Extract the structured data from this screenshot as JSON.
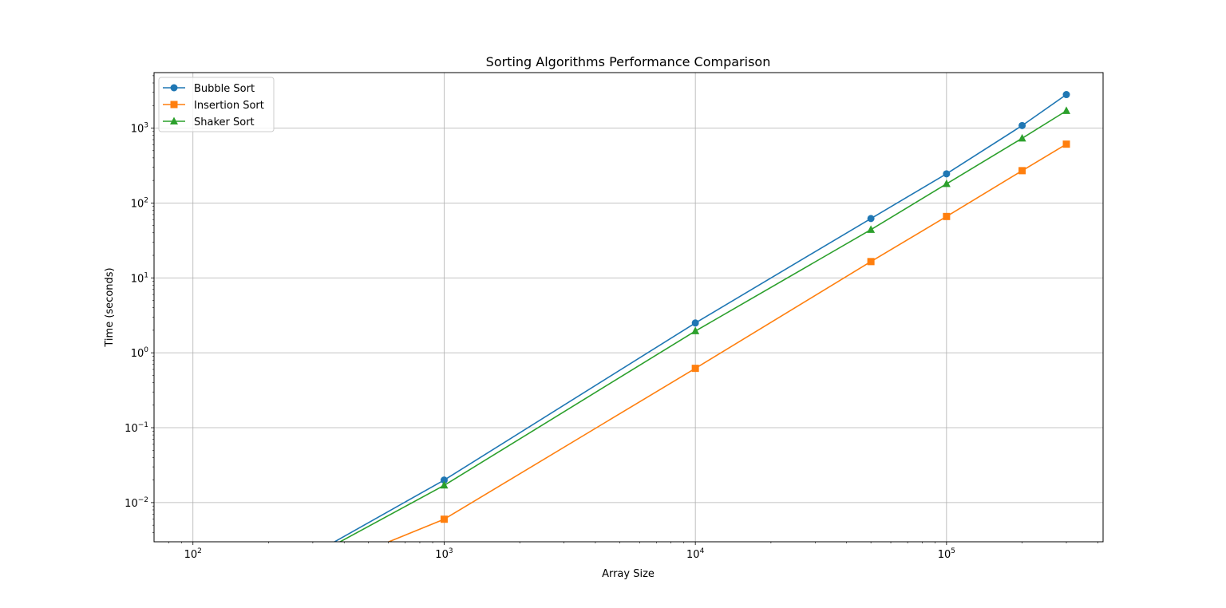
{
  "chart_data": {
    "type": "line",
    "title": "Sorting Algorithms Performance Comparison",
    "xlabel": "Array Size",
    "ylabel": "Time (seconds)",
    "x_scale": "log",
    "y_scale": "log",
    "xlim": [
      70,
      420000
    ],
    "ylim": [
      0.003,
      5500
    ],
    "x_ticks": [
      100,
      1000,
      10000,
      100000
    ],
    "x_tick_labels": [
      [
        "10",
        "2"
      ],
      [
        "10",
        "3"
      ],
      [
        "10",
        "4"
      ],
      [
        "10",
        "5"
      ]
    ],
    "y_ticks": [
      0.01,
      0.1,
      1,
      10,
      100,
      1000
    ],
    "y_tick_labels": [
      [
        "10",
        "−2"
      ],
      [
        "10",
        "−1"
      ],
      [
        "10",
        "0"
      ],
      [
        "10",
        "1"
      ],
      [
        "10",
        "2"
      ],
      [
        "10",
        "3"
      ]
    ],
    "grid": true,
    "legend_position": "top-left",
    "x": [
      100,
      1000,
      10000,
      50000,
      100000,
      200000,
      300000
    ],
    "series": [
      {
        "name": "Bubble Sort",
        "color": "#1f77b4",
        "marker": "circle",
        "values": [
          0,
          0.02,
          2.5,
          62,
          245,
          1080,
          2800
        ]
      },
      {
        "name": "Insertion Sort",
        "color": "#ff7f0e",
        "marker": "square",
        "values": [
          0,
          0.006,
          0.62,
          16.5,
          66,
          270,
          610
        ]
      },
      {
        "name": "Shaker Sort",
        "color": "#2ca02c",
        "marker": "triangle",
        "values": [
          0,
          0.017,
          1.95,
          44,
          180,
          730,
          1700
        ]
      }
    ]
  }
}
